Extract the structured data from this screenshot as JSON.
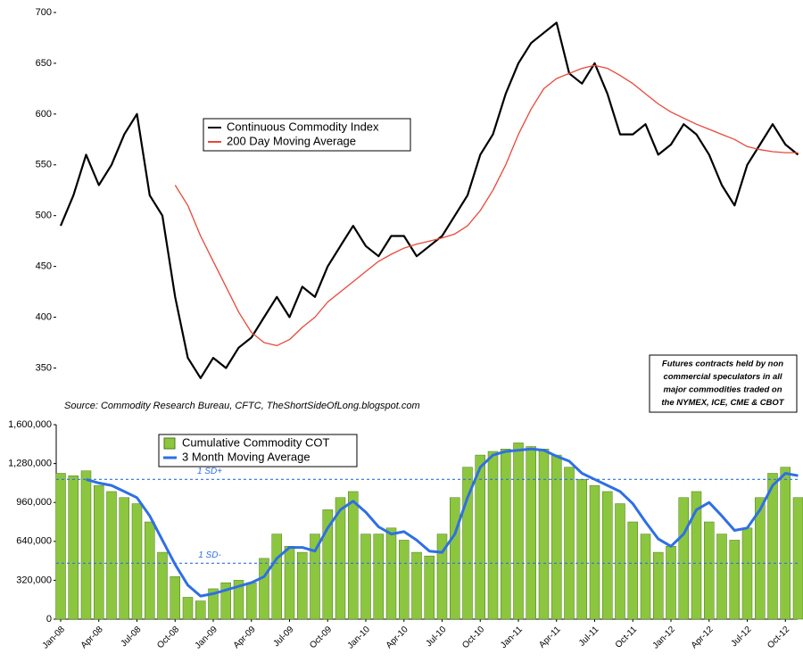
{
  "chart_data": [
    {
      "type": "line",
      "legend": "upper-left",
      "ylim": [
        310,
        700
      ],
      "yticks": [
        350,
        400,
        450,
        500,
        550,
        600,
        650,
        700
      ],
      "series": [
        {
          "name": "Continuous Commodity Index",
          "color": "#000000",
          "values": [
            490,
            520,
            560,
            530,
            550,
            580,
            600,
            520,
            500,
            420,
            360,
            340,
            360,
            350,
            370,
            380,
            400,
            420,
            400,
            430,
            420,
            450,
            470,
            490,
            470,
            460,
            480,
            480,
            460,
            470,
            480,
            500,
            520,
            560,
            580,
            620,
            650,
            670,
            680,
            690,
            640,
            630,
            650,
            620,
            580,
            580,
            590,
            560,
            570,
            590,
            580,
            560,
            530,
            510,
            550,
            570,
            590,
            570,
            560
          ]
        },
        {
          "name": "200 Day Moving Average",
          "color": "#e8483a",
          "values": [
            null,
            null,
            null,
            null,
            null,
            null,
            null,
            null,
            null,
            530,
            510,
            480,
            455,
            430,
            405,
            385,
            375,
            372,
            378,
            390,
            400,
            415,
            425,
            435,
            445,
            455,
            462,
            468,
            472,
            475,
            478,
            482,
            490,
            505,
            525,
            550,
            580,
            605,
            625,
            635,
            640,
            645,
            648,
            645,
            638,
            630,
            620,
            610,
            602,
            596,
            590,
            585,
            580,
            575,
            568,
            565,
            563,
            562,
            562
          ]
        }
      ],
      "source": "Source: Commodity Research Bureau, CFTC, TheShortSideOfLong.blogspot.com",
      "note": [
        "Futures contracts held by non",
        "commercial speculators in all",
        "major commodities traded on",
        "the NYMEX, ICE, CME & CBOT"
      ]
    },
    {
      "type": "bar",
      "legend": "upper-left",
      "categories": [
        "Jan-08",
        null,
        null,
        "Apr-08",
        null,
        null,
        "Jul-08",
        null,
        null,
        "Oct-08",
        null,
        null,
        "Jan-09",
        null,
        null,
        "Apr-09",
        null,
        null,
        "Jul-09",
        null,
        null,
        "Oct-09",
        null,
        null,
        "Jan-10",
        null,
        null,
        "Apr-10",
        null,
        null,
        "Jul-10",
        null,
        null,
        "Oct-10",
        null,
        null,
        "Jan-11",
        null,
        null,
        "Apr-11",
        null,
        null,
        "Jul-11",
        null,
        null,
        "Oct-11",
        null,
        null,
        "Jan-12",
        null,
        null,
        "Apr-12",
        null,
        null,
        "Jul-12",
        null,
        null,
        "Oct-12",
        null
      ],
      "ylim": [
        0,
        1600000
      ],
      "yticks": [
        0,
        {
          "value": 320000,
          "label": "320,000"
        },
        {
          "value": 640000,
          "label": "640,000"
        },
        {
          "value": 960000,
          "label": "960,000"
        },
        {
          "value": 1280000,
          "label": "1,280,000"
        },
        {
          "value": 1600000,
          "label": "1,600,000"
        }
      ],
      "series": [
        {
          "name": "Cumulative Commodity COT",
          "color": "#8cc63f",
          "values": [
            1200000,
            1180000,
            1220000,
            1100000,
            1050000,
            1000000,
            950000,
            800000,
            550000,
            350000,
            180000,
            150000,
            250000,
            300000,
            320000,
            300000,
            500000,
            700000,
            600000,
            550000,
            700000,
            900000,
            1000000,
            1050000,
            700000,
            700000,
            750000,
            650000,
            550000,
            520000,
            700000,
            1000000,
            1250000,
            1350000,
            1380000,
            1400000,
            1450000,
            1420000,
            1400000,
            1350000,
            1250000,
            1150000,
            1100000,
            1050000,
            950000,
            800000,
            700000,
            550000,
            600000,
            1000000,
            1050000,
            800000,
            700000,
            650000,
            750000,
            1000000,
            1200000,
            1250000,
            1000000
          ]
        },
        {
          "name": "3 Month Moving Average",
          "color": "#2f6fe4",
          "type": "line",
          "values": [
            null,
            null,
            1150000,
            1120000,
            1100000,
            1050000,
            1000000,
            850000,
            650000,
            450000,
            280000,
            190000,
            210000,
            240000,
            270000,
            300000,
            350000,
            500000,
            590000,
            590000,
            560000,
            750000,
            900000,
            970000,
            880000,
            760000,
            700000,
            720000,
            650000,
            560000,
            550000,
            700000,
            1000000,
            1250000,
            1350000,
            1380000,
            1390000,
            1400000,
            1390000,
            1340000,
            1300000,
            1200000,
            1150000,
            1100000,
            1050000,
            950000,
            800000,
            660000,
            600000,
            700000,
            900000,
            960000,
            850000,
            730000,
            750000,
            900000,
            1100000,
            1200000,
            1180000
          ]
        }
      ],
      "reference_lines": [
        {
          "value": 1150000,
          "label": "1 SD+"
        },
        {
          "value": 460000,
          "label": "1 SD-"
        }
      ]
    }
  ]
}
